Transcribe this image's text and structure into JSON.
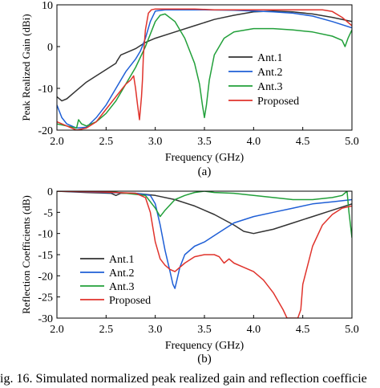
{
  "figure": {
    "caption": "ig. 16. Simulated normalized peak realized gain and reflection coefficie"
  },
  "chart_data": [
    {
      "type": "line",
      "panel_label": "(a)",
      "xlabel": "Frequency (GHz)",
      "ylabel": "Peak Realized Gain (dBi)",
      "xlim": [
        2.0,
        5.0
      ],
      "ylim": [
        -20,
        10
      ],
      "xticks": [
        2.0,
        2.5,
        3.0,
        3.5,
        4.0,
        4.5,
        5.0
      ],
      "xtick_labels": [
        "2.0",
        "2.5",
        "3.0",
        "3.5",
        "4.0",
        "4.5",
        "5.0"
      ],
      "yticks": [
        -20,
        -10,
        0,
        10
      ],
      "ytick_labels": [
        "-20",
        "-10",
        "0",
        "10"
      ],
      "legend_position": "center-right",
      "series": [
        {
          "name": "Ant.1",
          "color": "#333333",
          "x": [
            2.0,
            2.05,
            2.1,
            2.2,
            2.3,
            2.4,
            2.5,
            2.6,
            2.61,
            2.65,
            2.7,
            2.8,
            2.9,
            3.0,
            3.2,
            3.4,
            3.6,
            3.8,
            4.0,
            4.2,
            4.4,
            4.6,
            4.8,
            5.0
          ],
          "y": [
            -12,
            -13,
            -12.5,
            -10.5,
            -8.5,
            -7,
            -5.5,
            -4,
            -3.5,
            -2,
            -1.5,
            -0.5,
            1,
            2,
            3.5,
            5,
            6.5,
            7.5,
            8.3,
            8.5,
            8.3,
            7.8,
            7,
            6
          ]
        },
        {
          "name": "Ant.2",
          "color": "#1f5fd6",
          "x": [
            2.0,
            2.05,
            2.1,
            2.2,
            2.3,
            2.4,
            2.5,
            2.6,
            2.7,
            2.8,
            2.85,
            2.9,
            2.95,
            3.0,
            3.1,
            3.3,
            3.5,
            3.8,
            4.0,
            4.2,
            4.4,
            4.6,
            4.8,
            5.0
          ],
          "y": [
            -14,
            -17,
            -18.5,
            -19.5,
            -19.3,
            -17,
            -14,
            -10,
            -6,
            -3,
            -1,
            2,
            6,
            8.5,
            8.8,
            8.8,
            8.8,
            8.7,
            8.5,
            8.3,
            8,
            7.3,
            6,
            4.5
          ]
        },
        {
          "name": "Ant.3",
          "color": "#22a03a",
          "x": [
            2.0,
            2.1,
            2.2,
            2.22,
            2.25,
            2.3,
            2.4,
            2.5,
            2.6,
            2.7,
            2.8,
            2.9,
            3.0,
            3.05,
            3.1,
            3.2,
            3.3,
            3.4,
            3.45,
            3.48,
            3.5,
            3.52,
            3.55,
            3.6,
            3.7,
            3.8,
            4.0,
            4.2,
            4.4,
            4.6,
            4.8,
            4.9,
            4.93,
            4.96,
            5.0
          ],
          "y": [
            -18.5,
            -19,
            -19.5,
            -17.5,
            -18.5,
            -19,
            -18,
            -16,
            -13,
            -9,
            -5,
            0,
            6,
            7.5,
            7.8,
            6,
            2,
            -4,
            -9,
            -14,
            -17,
            -14,
            -8,
            -2,
            2,
            3.5,
            4.3,
            4.3,
            4,
            3.5,
            2.5,
            1.5,
            0,
            2,
            4
          ]
        },
        {
          "name": "Proposed",
          "color": "#e0332c",
          "x": [
            2.0,
            2.1,
            2.2,
            2.3,
            2.4,
            2.5,
            2.6,
            2.7,
            2.75,
            2.78,
            2.8,
            2.82,
            2.84,
            2.86,
            2.87,
            2.88,
            2.9,
            2.93,
            2.96,
            3.0,
            3.2,
            3.4,
            3.6,
            3.8,
            4.0,
            4.2,
            4.4,
            4.6,
            4.7,
            4.8,
            4.9,
            5.0
          ],
          "y": [
            -18,
            -19,
            -20,
            -19.5,
            -18,
            -15,
            -12,
            -9,
            -8,
            -7,
            -10,
            -14,
            -17.5,
            -12,
            -8,
            -2,
            4,
            8,
            8.8,
            9,
            9,
            9,
            8.8,
            8.8,
            8.8,
            8.8,
            8.8,
            8.8,
            8.8,
            8.4,
            7,
            5
          ]
        }
      ]
    },
    {
      "type": "line",
      "panel_label": "(b)",
      "xlabel": "Frequency (GHz)",
      "ylabel": "Reflection Coefficients (dB)",
      "xlim": [
        2.0,
        5.0
      ],
      "ylim": [
        -30,
        0
      ],
      "xticks": [
        2.0,
        2.5,
        3.0,
        3.5,
        4.0,
        4.5,
        5.0
      ],
      "xtick_labels": [
        "2.0",
        "2.5",
        "3.0",
        "3.5",
        "4.0",
        "4.5",
        "5.0"
      ],
      "yticks": [
        -30,
        -25,
        -20,
        -15,
        -10,
        -5,
        0
      ],
      "ytick_labels": [
        "-30",
        "-25",
        "-20",
        "-15",
        "-10",
        "-5",
        "0"
      ],
      "legend_position": "left-lower",
      "series": [
        {
          "name": "Ant.1",
          "color": "#333333",
          "x": [
            2.0,
            2.3,
            2.55,
            2.6,
            2.65,
            2.8,
            3.0,
            3.2,
            3.4,
            3.6,
            3.8,
            3.9,
            4.0,
            4.1,
            4.2,
            4.4,
            4.6,
            4.8,
            5.0
          ],
          "y": [
            0,
            -0.3,
            -0.5,
            -1,
            -0.5,
            -0.5,
            -1,
            -2,
            -3.5,
            -5.5,
            -8,
            -9.5,
            -10,
            -9.5,
            -9,
            -7.5,
            -6,
            -4.5,
            -3
          ]
        },
        {
          "name": "Ant.2",
          "color": "#1f5fd6",
          "x": [
            2.0,
            2.5,
            2.8,
            2.95,
            3.0,
            3.05,
            3.1,
            3.15,
            3.18,
            3.2,
            3.22,
            3.25,
            3.3,
            3.4,
            3.5,
            3.6,
            3.7,
            3.8,
            4.0,
            4.2,
            4.4,
            4.6,
            4.8,
            5.0
          ],
          "y": [
            0,
            -0.3,
            -0.5,
            -1,
            -3,
            -8,
            -14,
            -19,
            -22,
            -23,
            -21,
            -18,
            -15,
            -13,
            -12,
            -10.5,
            -9,
            -7.5,
            -6,
            -5,
            -4,
            -3,
            -2.5,
            -2
          ]
        },
        {
          "name": "Ant.3",
          "color": "#22a03a",
          "x": [
            2.0,
            2.5,
            2.9,
            3.0,
            3.05,
            3.1,
            3.2,
            3.3,
            3.4,
            3.5,
            3.6,
            3.8,
            4.0,
            4.2,
            4.4,
            4.6,
            4.8,
            4.9,
            4.95,
            4.97,
            5.0
          ],
          "y": [
            0,
            0,
            -1,
            -4,
            -6,
            -4.5,
            -2,
            -1,
            -0.3,
            0,
            -0.3,
            -0.5,
            -1,
            -1.5,
            -2,
            -2,
            -1.5,
            -1,
            0,
            -5,
            -11
          ]
        },
        {
          "name": "Proposed",
          "color": "#e0332c",
          "x": [
            2.0,
            2.5,
            2.8,
            2.9,
            2.95,
            3.0,
            3.05,
            3.1,
            3.15,
            3.2,
            3.3,
            3.4,
            3.5,
            3.6,
            3.65,
            3.7,
            3.75,
            3.8,
            3.9,
            4.0,
            4.1,
            4.2,
            4.3,
            4.34,
            4.45,
            4.48,
            4.5,
            4.6,
            4.7,
            4.8,
            4.9,
            5.0
          ],
          "y": [
            0,
            -0.2,
            -0.5,
            -1.5,
            -5,
            -12,
            -16,
            -17.5,
            -18.5,
            -19,
            -17,
            -15.5,
            -15,
            -15,
            -15.5,
            -17,
            -16,
            -17,
            -18,
            -19,
            -21,
            -24,
            -28,
            -30,
            -30,
            -28,
            -22,
            -13,
            -8,
            -5.5,
            -4,
            -3.5
          ]
        }
      ]
    }
  ]
}
